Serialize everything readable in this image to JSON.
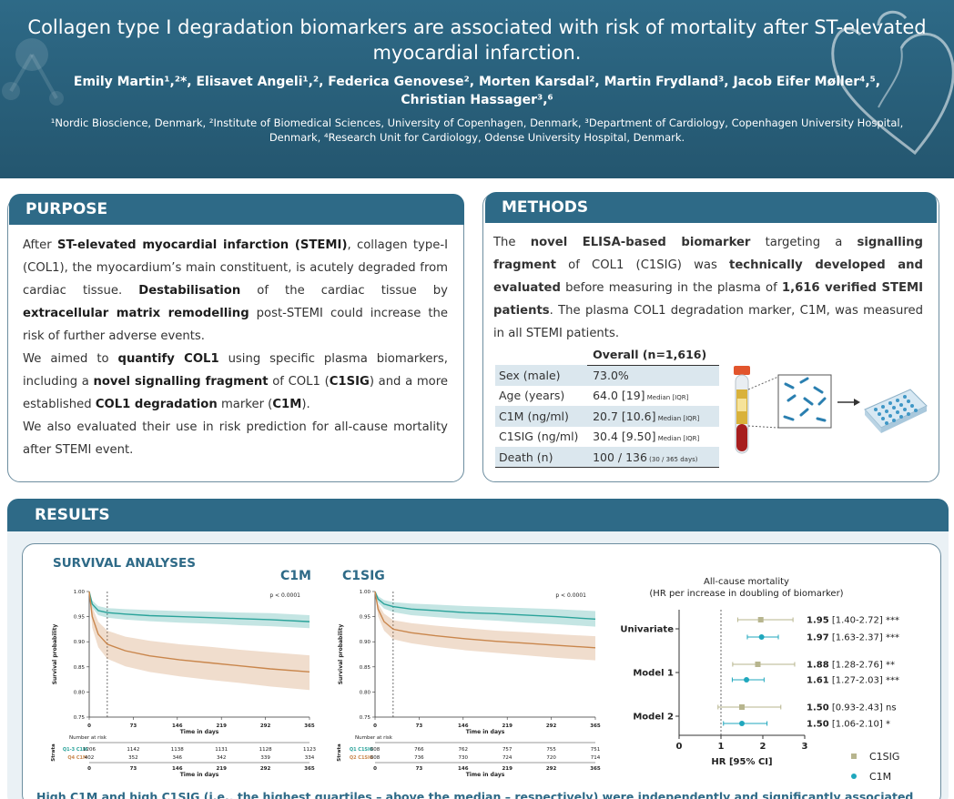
{
  "header": {
    "title_line1": "Collagen type I degradation biomarkers are associated with risk of mortality after ST-elevated",
    "title_line2": "myocardial infarction.",
    "authors_line1": "Emily Martin¹,²*, Elisavet Angeli¹,², Federica Genovese², Morten Karsdal², Martin Frydland³, Jacob Eifer Møller⁴,⁵,",
    "authors_line2": "Christian Hassager³,⁶",
    "affil_line1": "¹Nordic Bioscience, Denmark, ²Institute of Biomedical Sciences, University of Copenhagen, Denmark, ³Department of Cardiology, Copenhagen University Hospital,",
    "affil_line2": "Denmark, ⁴Research Unit for Cardiology, Odense University Hospital, Denmark."
  },
  "purpose": {
    "heading": "PURPOSE",
    "p1": [
      {
        "t": "After ",
        "b": false
      },
      {
        "t": "ST-elevated myocardial infarction (STEMI)",
        "b": true
      },
      {
        "t": ", collagen type-I (COL1), the myocardium’s main constituent, is acutely degraded from cardiac tissue. ",
        "b": false
      },
      {
        "t": "Destabilisation",
        "b": true
      },
      {
        "t": " of the cardiac tissue by ",
        "b": false
      },
      {
        "t": "extracellular matrix remodelling",
        "b": true
      },
      {
        "t": " post-STEMI could increase the risk of further adverse events.",
        "b": false
      }
    ],
    "p2": [
      {
        "t": "We aimed to ",
        "b": false
      },
      {
        "t": "quantify COL1",
        "b": true
      },
      {
        "t": " using specific plasma biomarkers, including a ",
        "b": false
      },
      {
        "t": "novel signalling fragment",
        "b": true
      },
      {
        "t": " of COL1 (",
        "b": false
      },
      {
        "t": "C1SIG",
        "b": true
      },
      {
        "t": ") and a more established ",
        "b": false
      },
      {
        "t": "COL1 degradation",
        "b": true
      },
      {
        "t": " marker (",
        "b": false
      },
      {
        "t": "C1M",
        "b": true
      },
      {
        "t": ").",
        "b": false
      }
    ],
    "p3": [
      {
        "t": "We also evaluated their use in risk prediction for all-cause mortality after STEMI event.",
        "b": false
      }
    ]
  },
  "methods": {
    "heading": "METHODS",
    "text": [
      {
        "t": "The ",
        "b": false
      },
      {
        "t": "novel ELISA-based biomarker",
        "b": true
      },
      {
        "t": " targeting a ",
        "b": false
      },
      {
        "t": "signalling fragment",
        "b": true
      },
      {
        "t": " of COL1 (C1SIG) was ",
        "b": false
      },
      {
        "t": "technically developed and evaluated",
        "b": true
      },
      {
        "t": " before measuring in the plasma of ",
        "b": false
      },
      {
        "t": "1,616 verified STEMI patients",
        "b": true
      },
      {
        "t": ". The plasma COL1 degradation marker, C1M, was measured in all STEMI patients.",
        "b": false
      }
    ],
    "table": {
      "header": "Overall (n=1,616)",
      "rows": [
        {
          "label": "Sex (male)",
          "value": "73.0%",
          "note": ""
        },
        {
          "label": "Age (years)",
          "value": "64.0 [19]",
          "note": "Median [IQR]"
        },
        {
          "label": "C1M (ng/ml)",
          "value": "20.7 [10.6]",
          "note": "Median [IQR]"
        },
        {
          "label": "C1SIG (ng/ml)",
          "value": "30.4 [9.50]",
          "note": "Median [IQR]"
        },
        {
          "label": "Death (n)",
          "value": "100 / 136",
          "note": "(30 / 365 days)"
        }
      ]
    }
  },
  "results": {
    "heading": "RESULTS",
    "survival_title": "SURVIVAL ANALYSES",
    "bottom_text": "High C1M and high C1SIG (i.e., the highest quartiles – above the median – respectively) were independently and significantly associated"
  },
  "colors": {
    "high": "#c9864c",
    "low": "#2aa39a",
    "header": "#2e6a87",
    "c1sig": "#b7b58e",
    "c1m": "#1fa7bd"
  },
  "chart_data": [
    {
      "type": "line",
      "title": "C1M",
      "xlabel": "Time in days",
      "ylabel": "Survival probability",
      "pvalue": "p < 0.0001",
      "x_ticks": [
        0,
        73,
        146,
        219,
        292,
        365
      ],
      "y_ticks": [
        "1.00",
        "0.95",
        "0.90",
        "0.85",
        "0.80",
        "0.75"
      ],
      "xlim": [
        0,
        365
      ],
      "ylim": [
        0.75,
        1.0
      ],
      "vline_x": 30,
      "series": [
        {
          "name": "Q1-3 C1M",
          "color": "#2aa39a",
          "x": [
            0,
            5,
            15,
            30,
            60,
            100,
            150,
            200,
            250,
            300,
            365
          ],
          "y": [
            1.0,
            0.975,
            0.962,
            0.958,
            0.955,
            0.952,
            0.95,
            0.948,
            0.946,
            0.944,
            0.94
          ],
          "lo": [
            1.0,
            0.968,
            0.953,
            0.948,
            0.944,
            0.941,
            0.938,
            0.936,
            0.933,
            0.931,
            0.927
          ],
          "hi": [
            1.0,
            0.982,
            0.971,
            0.967,
            0.965,
            0.963,
            0.961,
            0.96,
            0.958,
            0.957,
            0.953
          ]
        },
        {
          "name": "Q4 C1M",
          "color": "#c9864c",
          "x": [
            0,
            5,
            15,
            30,
            60,
            100,
            150,
            200,
            250,
            300,
            365
          ],
          "y": [
            1.0,
            0.95,
            0.915,
            0.895,
            0.882,
            0.872,
            0.864,
            0.858,
            0.852,
            0.846,
            0.84
          ],
          "lo": [
            1.0,
            0.928,
            0.889,
            0.866,
            0.851,
            0.84,
            0.831,
            0.824,
            0.818,
            0.811,
            0.804
          ],
          "hi": [
            1.0,
            0.969,
            0.94,
            0.922,
            0.91,
            0.902,
            0.895,
            0.89,
            0.884,
            0.879,
            0.873
          ]
        }
      ],
      "risk_header": "Number at risk",
      "strata_label": "Strata",
      "risk_rows": [
        {
          "name": "Q1-3 C1M",
          "values": [
            1206,
            1142,
            1138,
            1131,
            1128,
            1123
          ]
        },
        {
          "name": "Q4 C1M",
          "values": [
            402,
            352,
            346,
            342,
            339,
            334
          ]
        }
      ]
    },
    {
      "type": "line",
      "title": "C1SIG",
      "xlabel": "Time in days",
      "ylabel": "Survival probability",
      "pvalue": "p < 0.0001",
      "x_ticks": [
        0,
        73,
        146,
        219,
        292,
        365
      ],
      "y_ticks": [
        "1.00",
        "0.95",
        "0.90",
        "0.85",
        "0.80",
        "0.75"
      ],
      "xlim": [
        0,
        365
      ],
      "ylim": [
        0.75,
        1.0
      ],
      "vline_x": 30,
      "series": [
        {
          "name": "Q1 C1SIG",
          "color": "#2aa39a",
          "x": [
            0,
            5,
            15,
            30,
            60,
            100,
            150,
            200,
            250,
            300,
            365
          ],
          "y": [
            1.0,
            0.985,
            0.975,
            0.97,
            0.965,
            0.962,
            0.958,
            0.956,
            0.953,
            0.95,
            0.945
          ],
          "lo": [
            1.0,
            0.978,
            0.966,
            0.959,
            0.953,
            0.949,
            0.945,
            0.942,
            0.938,
            0.935,
            0.93
          ],
          "hi": [
            1.0,
            0.991,
            0.983,
            0.979,
            0.976,
            0.974,
            0.971,
            0.969,
            0.967,
            0.965,
            0.961
          ]
        },
        {
          "name": "Q2 C1SIG",
          "color": "#c9864c",
          "x": [
            0,
            5,
            15,
            30,
            60,
            100,
            150,
            200,
            250,
            300,
            365
          ],
          "y": [
            1.0,
            0.965,
            0.94,
            0.925,
            0.918,
            0.912,
            0.906,
            0.901,
            0.897,
            0.893,
            0.888
          ],
          "lo": [
            1.0,
            0.951,
            0.922,
            0.905,
            0.897,
            0.89,
            0.883,
            0.878,
            0.873,
            0.868,
            0.863
          ],
          "hi": [
            1.0,
            0.976,
            0.956,
            0.943,
            0.937,
            0.932,
            0.927,
            0.922,
            0.919,
            0.915,
            0.911
          ]
        }
      ],
      "risk_header": "Number at risk",
      "strata_label": "Strata",
      "risk_rows": [
        {
          "name": "Q1 C1SIG",
          "values": [
            808,
            766,
            762,
            757,
            755,
            751
          ]
        },
        {
          "name": "Q2 C1SIG",
          "values": [
            808,
            736,
            730,
            724,
            720,
            714
          ]
        }
      ]
    },
    {
      "type": "forest",
      "title": "All-cause mortality",
      "subtitle": "(HR per increase in doubling of biomarker)",
      "xlabel": "HR [95% CI]",
      "x_ticks": [
        0,
        1,
        2,
        3
      ],
      "xlim": [
        0,
        3
      ],
      "ref_line": 1,
      "groups": [
        "Univariate",
        "Model 1",
        "Model 2"
      ],
      "rows": [
        {
          "group": "Univariate",
          "marker": "C1SIG",
          "hr": 1.95,
          "lo": 1.4,
          "hi": 2.72,
          "hr_text": "1.95",
          "ci_text": "[1.40-2.72]",
          "sig": "***"
        },
        {
          "group": "Univariate",
          "marker": "C1M",
          "hr": 1.97,
          "lo": 1.63,
          "hi": 2.37,
          "hr_text": "1.97",
          "ci_text": "[1.63-2.37]",
          "sig": "***"
        },
        {
          "group": "Model 1",
          "marker": "C1SIG",
          "hr": 1.88,
          "lo": 1.28,
          "hi": 2.76,
          "hr_text": "1.88",
          "ci_text": "[1.28-2.76]",
          "sig": "**"
        },
        {
          "group": "Model 1",
          "marker": "C1M",
          "hr": 1.61,
          "lo": 1.27,
          "hi": 2.03,
          "hr_text": "1.61",
          "ci_text": "[1.27-2.03]",
          "sig": "***"
        },
        {
          "group": "Model 2",
          "marker": "C1SIG",
          "hr": 1.5,
          "lo": 0.93,
          "hi": 2.43,
          "hr_text": "1.50",
          "ci_text": "[0.93-2.43]",
          "sig": "ns"
        },
        {
          "group": "Model 2",
          "marker": "C1M",
          "hr": 1.5,
          "lo": 1.06,
          "hi": 2.1,
          "hr_text": "1.50",
          "ci_text": "[1.06-2.10]",
          "sig": "*"
        }
      ],
      "legend": [
        {
          "name": "C1SIG",
          "color": "#b7b58e",
          "shape": "square"
        },
        {
          "name": "C1M",
          "color": "#1fa7bd",
          "shape": "circle"
        }
      ]
    }
  ]
}
